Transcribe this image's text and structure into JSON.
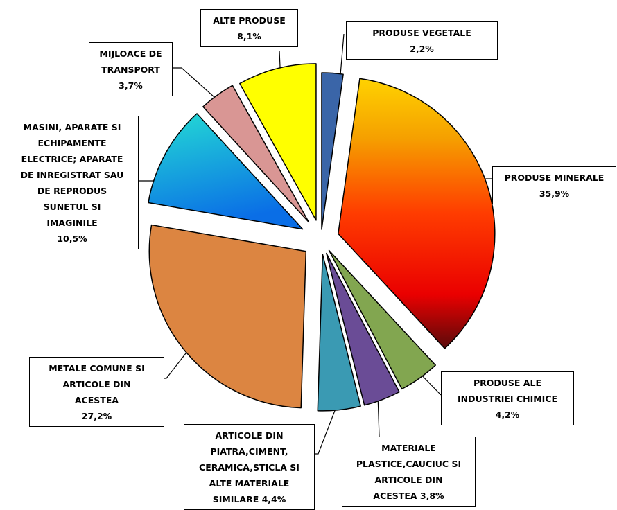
{
  "chart_data": {
    "type": "pie",
    "exploded": true,
    "data_labels_as_callouts": true,
    "slices": [
      {
        "label_lines": [
          "PRODUSE VEGETALE",
          "2,2%"
        ],
        "value": 2.2,
        "color": "#3a65a8"
      },
      {
        "label_lines": [
          "PRODUSE MINERALE",
          "35,9%"
        ],
        "value": 35.9,
        "color": "#f03a00",
        "gradient": [
          "#ffd200",
          "#f5a000",
          "#ff3c00",
          "#ea0000",
          "#5a0a0a"
        ]
      },
      {
        "label_lines": [
          "PRODUSE ALE",
          "INDUSTRIEI CHIMICE",
          "4,2%"
        ],
        "value": 4.2,
        "color": "#82a650"
      },
      {
        "label_lines": [
          "MATERIALE",
          "PLASTICE,CAUCIUC SI",
          "ARTICOLE DIN",
          "ACESTEA  3,8%"
        ],
        "value": 3.8,
        "color": "#6a4c96"
      },
      {
        "label_lines": [
          "ARTICOLE DIN",
          "PIATRA,CIMENT,",
          "CERAMICA,STICLA SI",
          "ALTE MATERIALE",
          "SIMILARE  4,4%"
        ],
        "value": 4.4,
        "color": "#3a9ab3"
      },
      {
        "label_lines": [
          "METALE COMUNE SI",
          "ARTICOLE DIN",
          "ACESTEA",
          "27,2%"
        ],
        "value": 27.2,
        "color": "#dc8541"
      },
      {
        "label_lines": [
          "MASINI, APARATE  SI",
          "ECHIPAMENTE",
          "ELECTRICE; APARATE",
          "DE INREGISTRAT SAU",
          "DE  REPRODUS",
          "SUNETUL SI",
          "IMAGINILE",
          "10,5%"
        ],
        "value": 10.5,
        "color": "#1890e0",
        "gradient": [
          "#24dcd4",
          "#0a6ee6"
        ]
      },
      {
        "label_lines": [
          "MIJLOACE DE",
          "TRANSPORT",
          "3,7%"
        ],
        "value": 3.7,
        "color": "#d99694"
      },
      {
        "label_lines": [
          "ALTE PRODUSE",
          "8,1%"
        ],
        "value": 8.1,
        "color": "#ffff00"
      }
    ]
  }
}
